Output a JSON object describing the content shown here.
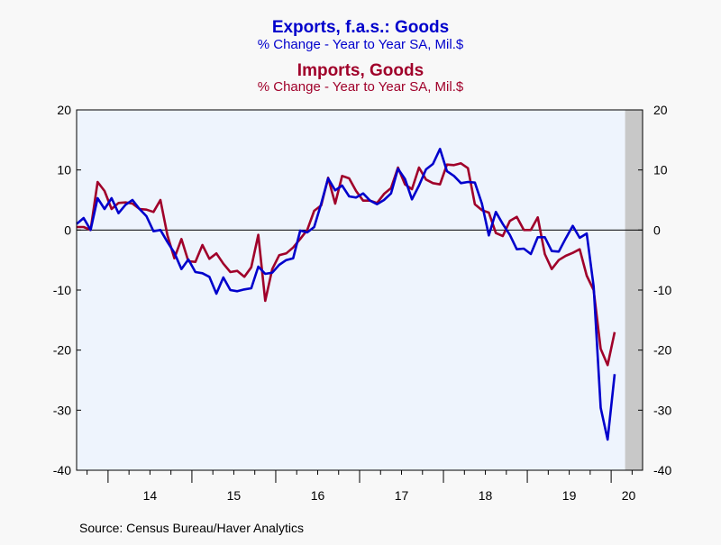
{
  "titles": {
    "exports_title": "Exports, f.a.s.: Goods",
    "exports_sub": "% Change - Year to Year    SA, Mil.$",
    "imports_title": "Imports, Goods",
    "imports_sub": "% Change - Year to Year    SA, Mil.$"
  },
  "source": "Source:  Census Bureau/Haver Analytics",
  "colors": {
    "exports": "#0000cc",
    "imports": "#a0002a",
    "plot_bg": "#eef4fd",
    "recession": "#c8c8c8",
    "page_bg": "#f8f8f8"
  },
  "chart_data": {
    "type": "line",
    "x_start": "2013-08",
    "x_end": "2020-05",
    "xlim": [
      "2013-08",
      "2020-05"
    ],
    "ylim": [
      -40,
      20
    ],
    "left_ticks": [
      "20",
      "10",
      "0",
      "-10",
      "-20",
      "-30",
      "-40"
    ],
    "right_ticks": [
      "20",
      "10",
      "0",
      "-10",
      "-20",
      "-30",
      "-40"
    ],
    "x_tick_labels": [
      "14",
      "15",
      "16",
      "17",
      "18",
      "19",
      "20"
    ],
    "zero_line": true,
    "recession_shade": [
      "2020-03",
      "2020-05"
    ],
    "series": [
      {
        "name": "Exports, f.a.s.: Goods",
        "values": [
          1.0,
          2.0,
          0.0,
          5.3,
          3.5,
          5.3,
          2.8,
          4.2,
          5.0,
          3.5,
          2.3,
          -0.2,
          0.0,
          -2.0,
          -3.8,
          -6.5,
          -4.9,
          -7.0,
          -7.2,
          -7.8,
          -10.6,
          -7.9,
          -10.0,
          -10.2,
          -9.9,
          -9.7,
          -6.1,
          -7.3,
          -7.1,
          -5.8,
          -5.0,
          -4.7,
          -0.1,
          -0.4,
          0.5,
          4.4,
          8.6,
          6.6,
          7.4,
          5.6,
          5.4,
          6.1,
          4.9,
          4.3,
          5.0,
          6.1,
          10.2,
          8.5,
          5.1,
          7.4,
          10.1,
          11.0,
          13.5,
          9.8,
          9.0,
          7.8,
          8.0,
          7.9,
          4.4,
          -0.9,
          3.0,
          1.0,
          -0.8,
          -3.2,
          -3.1,
          -4.0,
          -1.2,
          -1.2,
          -3.5,
          -3.6,
          -1.4,
          0.7,
          -1.3,
          -0.6,
          -9.4,
          -29.6,
          -34.9,
          -24.0
        ]
      },
      {
        "name": "Imports, Goods",
        "values": [
          0.5,
          0.5,
          0.0,
          8.0,
          6.5,
          3.5,
          4.5,
          4.6,
          4.4,
          3.5,
          3.4,
          3.0,
          5.0,
          -0.9,
          -4.7,
          -1.5,
          -5.2,
          -5.3,
          -2.5,
          -4.8,
          -3.9,
          -5.6,
          -7.0,
          -6.8,
          -7.8,
          -6.2,
          -0.8,
          -11.8,
          -6.5,
          -4.2,
          -3.9,
          -2.9,
          -1.5,
          0.0,
          3.2,
          4.1,
          8.7,
          4.4,
          9.0,
          8.6,
          6.5,
          4.9,
          4.9,
          4.5,
          6.0,
          7.0,
          10.4,
          7.6,
          6.8,
          10.4,
          8.4,
          7.8,
          7.6,
          10.9,
          10.8,
          11.1,
          10.3,
          4.3,
          3.3,
          2.9,
          -0.5,
          -1.0,
          1.5,
          2.2,
          0.0,
          0.0,
          2.1,
          -4.0,
          -6.5,
          -5.0,
          -4.3,
          -3.8,
          -3.2,
          -7.6,
          -10.0,
          -19.8,
          -22.5,
          -17.0
        ]
      }
    ]
  }
}
